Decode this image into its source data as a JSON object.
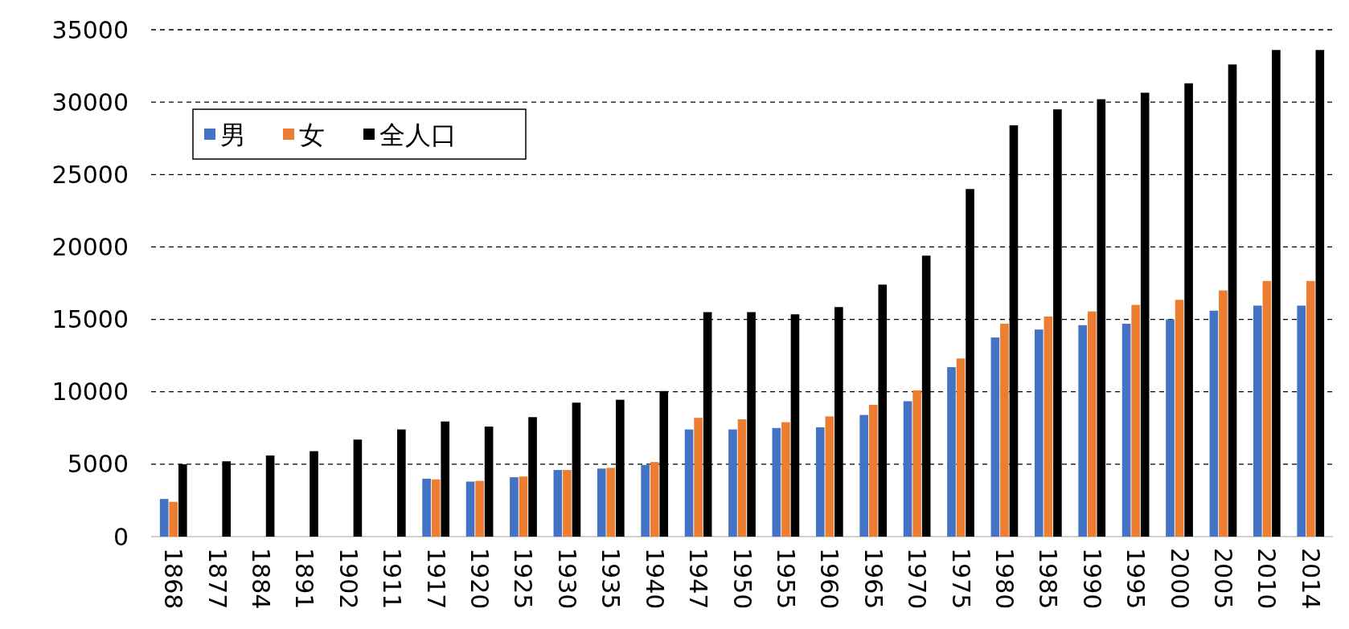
{
  "chart_data": {
    "type": "bar",
    "categories": [
      "1868",
      "1877",
      "1884",
      "1891",
      "1902",
      "1911",
      "1917",
      "1920",
      "1925",
      "1930",
      "1935",
      "1940",
      "1947",
      "1950",
      "1955",
      "1960",
      "1965",
      "1970",
      "1975",
      "1980",
      "1985",
      "1990",
      "1995",
      "2000",
      "2005",
      "2010",
      "2014"
    ],
    "series": [
      {
        "name": "男",
        "color": "#4472c4",
        "values": [
          2600,
          null,
          null,
          null,
          null,
          null,
          4000,
          3800,
          4100,
          4600,
          4700,
          4950,
          7400,
          7400,
          7500,
          7550,
          8400,
          9350,
          11700,
          13750,
          14300,
          14600,
          14700,
          15000,
          15600,
          15950,
          15950
        ]
      },
      {
        "name": "女",
        "color": "#ed7d31",
        "values": [
          2400,
          null,
          null,
          null,
          null,
          null,
          3950,
          3850,
          4150,
          4600,
          4750,
          5150,
          8200,
          8100,
          7900,
          8300,
          9100,
          10100,
          12300,
          14700,
          15200,
          15550,
          16000,
          16350,
          17000,
          17650,
          17650
        ]
      },
      {
        "name": "全人口",
        "color": "#000000",
        "values": [
          5000,
          5200,
          5600,
          5900,
          6700,
          7400,
          7950,
          7600,
          8250,
          9250,
          9450,
          10050,
          15500,
          15500,
          15350,
          15850,
          17400,
          19400,
          24000,
          28400,
          29500,
          30200,
          30650,
          31300,
          32600,
          33600,
          33600
        ]
      }
    ],
    "ylim": [
      0,
      35000
    ],
    "yticks": [
      0,
      5000,
      10000,
      15000,
      20000,
      25000,
      30000,
      35000
    ],
    "grid": "y",
    "legend": "top left"
  }
}
